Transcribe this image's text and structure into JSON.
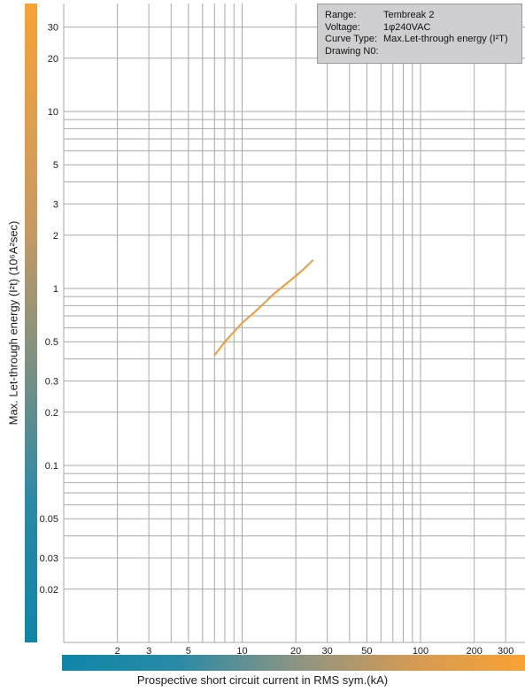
{
  "info": {
    "rows": [
      {
        "key": "Range:",
        "value": "Tembreak 2"
      },
      {
        "key": "Voltage:",
        "value": "1φ240VAC"
      },
      {
        "key": "Curve Type:",
        "value": "Max.Let-through energy (I²T)"
      },
      {
        "key": "Drawing N0:",
        "value": ""
      }
    ]
  },
  "chart_data": {
    "type": "line",
    "xlabel": "Prospective short circuit current in RMS sym.(kA)",
    "ylabel": "Max. Let-through energy (I²t)  (10⁶A²sec)",
    "xscale": "log",
    "yscale": "log",
    "xlim": [
      1,
      350
    ],
    "ylim": [
      0.01,
      35
    ],
    "grid": true,
    "xticks": [
      2,
      3,
      5,
      10,
      20,
      30,
      50,
      100,
      200,
      300
    ],
    "yticks": [
      0.02,
      0.03,
      0.05,
      0.1,
      0.2,
      0.3,
      0.5,
      1,
      2,
      3,
      5,
      10,
      20,
      30
    ],
    "series": [
      {
        "color": "#f39a33",
        "x": [
          7,
          8,
          10,
          12,
          15,
          18,
          20,
          22,
          25
        ],
        "y": [
          0.42,
          0.5,
          0.64,
          0.75,
          0.93,
          1.08,
          1.18,
          1.28,
          1.45
        ]
      }
    ]
  },
  "colors": {
    "grid": "#a8a8a8",
    "curve": "#f39a33"
  }
}
